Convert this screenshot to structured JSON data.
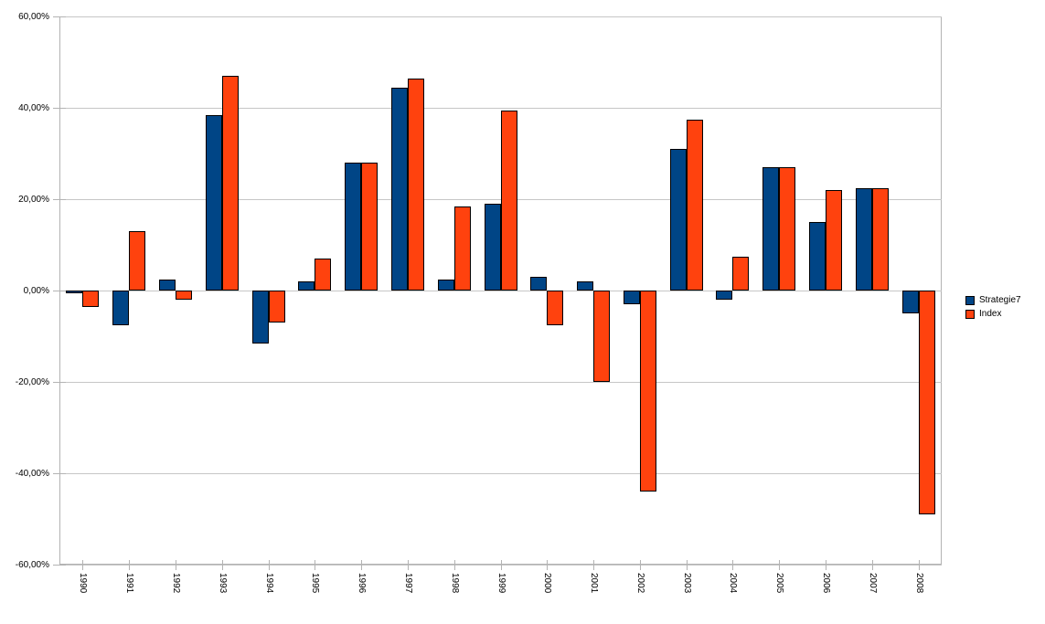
{
  "chart_data": {
    "type": "bar",
    "title": "",
    "xlabel": "",
    "ylabel": "",
    "categories": [
      "1990",
      "1991",
      "1992",
      "1993",
      "1994",
      "1995",
      "1996",
      "1997",
      "1998",
      "1999",
      "2000",
      "2001",
      "2002",
      "2003",
      "2004",
      "2005",
      "2006",
      "2007",
      "2008"
    ],
    "series": [
      {
        "name": "Strategie7",
        "color": "#004586",
        "values": [
          -0.5,
          -7.5,
          2.5,
          38.5,
          -11.5,
          2,
          28,
          44.5,
          2.5,
          19,
          3,
          2,
          -3,
          31,
          -2,
          27,
          15,
          22.5,
          -5
        ]
      },
      {
        "name": "Index",
        "color": "#FF420E",
        "values": [
          -3.5,
          13,
          -2,
          47,
          -7,
          7,
          28,
          46.5,
          18.5,
          39.5,
          -7.5,
          -20,
          -44,
          37.5,
          7.5,
          27,
          22,
          22.5,
          -49
        ]
      }
    ],
    "ylim": [
      -60,
      60
    ],
    "y_ticks": [
      {
        "value": 60,
        "label": "60,00%"
      },
      {
        "value": 40,
        "label": "40,00%"
      },
      {
        "value": 20,
        "label": "20,00%"
      },
      {
        "value": 0,
        "label": "0,00%"
      },
      {
        "value": -20,
        "label": "-20,00%"
      },
      {
        "value": -40,
        "label": "-40,00%"
      },
      {
        "value": -60,
        "label": "-60,00%"
      }
    ],
    "grid": true,
    "legend_position": "right",
    "value_format": "percent-comma-decimal"
  },
  "colors": {
    "background": "#FFFFFF",
    "gridline": "#C6C6C6",
    "axis_frame": "#B3B3B3",
    "bar_border": "#000000",
    "text": "#000000"
  }
}
